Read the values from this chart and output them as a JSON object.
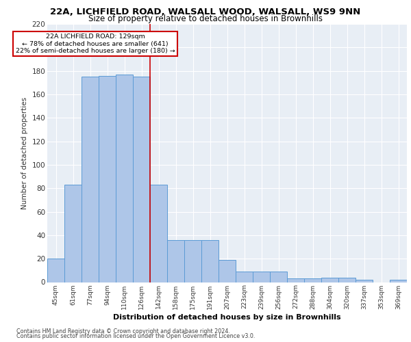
{
  "title1": "22A, LICHFIELD ROAD, WALSALL WOOD, WALSALL, WS9 9NN",
  "title2": "Size of property relative to detached houses in Brownhills",
  "xlabel": "Distribution of detached houses by size in Brownhills",
  "ylabel": "Number of detached properties",
  "categories": [
    "45sqm",
    "61sqm",
    "77sqm",
    "94sqm",
    "110sqm",
    "126sqm",
    "142sqm",
    "158sqm",
    "175sqm",
    "191sqm",
    "207sqm",
    "223sqm",
    "239sqm",
    "256sqm",
    "272sqm",
    "288sqm",
    "304sqm",
    "320sqm",
    "337sqm",
    "353sqm",
    "369sqm"
  ],
  "values": [
    20,
    83,
    175,
    176,
    177,
    175,
    83,
    36,
    36,
    36,
    19,
    9,
    9,
    9,
    3,
    3,
    4,
    4,
    2,
    0,
    2
  ],
  "bar_color": "#aec6e8",
  "bar_edge_color": "#5b9bd5",
  "vline_color": "#cc0000",
  "bg_color": "#e8eef5",
  "grid_color": "#ffffff",
  "annotation_text1": "22A LICHFIELD ROAD: 129sqm",
  "annotation_text2": "← 78% of detached houses are smaller (641)",
  "annotation_text3": "22% of semi-detached houses are larger (180) →",
  "footer1": "Contains HM Land Registry data © Crown copyright and database right 2024.",
  "footer2": "Contains public sector information licensed under the Open Government Licence v3.0.",
  "ylim": [
    0,
    220
  ],
  "yticks": [
    0,
    20,
    40,
    60,
    80,
    100,
    120,
    140,
    160,
    180,
    200,
    220
  ]
}
